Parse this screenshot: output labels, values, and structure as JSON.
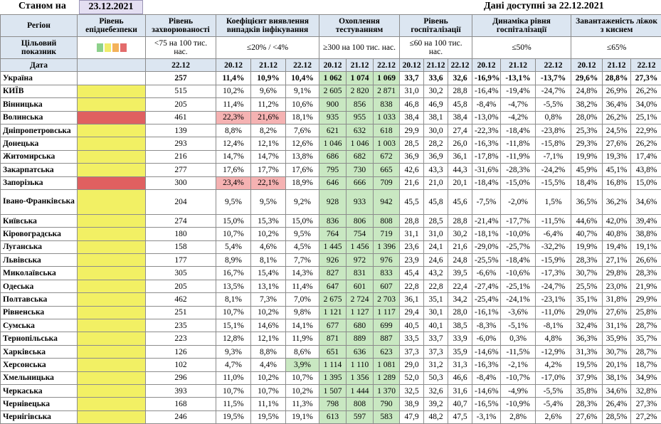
{
  "header": {
    "asof_label": "Станом на",
    "asof_date": "23.12.2021",
    "data_available": "Дані доступні за  22.12.2021"
  },
  "columns": {
    "region": "Регіон",
    "level": "Рівень епіднебезпеки",
    "incidence": "Рівень захворюваності",
    "detection": "Коефіцієнт виявлення випадків інфікування",
    "testing": "Охоплення тестуванням",
    "hosp": "Рівень госпіталізації",
    "dyn": "Динаміка рівня госпіталізації",
    "oxy": "Завантаженість ліжок з киснем"
  },
  "target": {
    "label": "Цільовий показник",
    "incidence": "<75 на 100 тис. нас.",
    "detection": "≤20% / <4%",
    "testing": "≥300 на 100 тис. нас.",
    "hosp": "≤60 на 100 тис. нас.",
    "dyn": "≤50%",
    "oxy": "≤65%"
  },
  "dates": {
    "label": "Дата",
    "incidence": "22.12",
    "triple": [
      "20.12",
      "21.12",
      "22.12"
    ]
  },
  "level_colors": {
    "green": "#8dd18b",
    "yellow": "#f0ec6a",
    "orange": "#f3b25a",
    "red": "#e36c6c"
  },
  "total": {
    "name": "Україна",
    "vals": [
      "257",
      "11,4%",
      "10,9%",
      "10,4%",
      "1 062",
      "1 074",
      "1 069",
      "33,7",
      "33,6",
      "32,6",
      "-16,9%",
      "-13,1%",
      "-13,7%",
      "29,6%",
      "28,8%",
      "27,3%"
    ]
  },
  "rows": [
    {
      "name": "КИЇВ",
      "level": "yellow",
      "vals": [
        "515",
        "10,2%",
        "9,6%",
        "9,1%",
        "2 605",
        "2 820",
        "2 871",
        "31,0",
        "30,2",
        "28,8",
        "-16,4%",
        "-19,4%",
        "-24,7%",
        "24,8%",
        "26,9%",
        "26,2%"
      ]
    },
    {
      "name": "Вінницька",
      "level": "yellow",
      "vals": [
        "205",
        "11,4%",
        "11,2%",
        "10,6%",
        "900",
        "856",
        "838",
        "46,8",
        "46,9",
        "45,8",
        "-8,4%",
        "-4,7%",
        "-5,5%",
        "38,2%",
        "36,4%",
        "34,0%"
      ]
    },
    {
      "name": "Волинська",
      "level": "red",
      "vals": [
        "461",
        "22,3%",
        "21,6%",
        "18,1%",
        "935",
        "955",
        "1 033",
        "38,4",
        "38,1",
        "38,4",
        "-13,0%",
        "-4,2%",
        "0,8%",
        "28,0%",
        "26,2%",
        "25,1%"
      ],
      "hlred": [
        1,
        2
      ]
    },
    {
      "name": "Дніпропетровська",
      "level": "yellow",
      "vals": [
        "139",
        "8,8%",
        "8,2%",
        "7,6%",
        "621",
        "632",
        "618",
        "29,9",
        "30,0",
        "27,4",
        "-22,3%",
        "-18,4%",
        "-23,8%",
        "25,3%",
        "24,5%",
        "22,9%"
      ]
    },
    {
      "name": "Донецька",
      "level": "yellow",
      "vals": [
        "293",
        "12,4%",
        "12,1%",
        "12,6%",
        "1 046",
        "1 046",
        "1 003",
        "28,5",
        "28,2",
        "26,0",
        "-16,3%",
        "-11,8%",
        "-15,8%",
        "29,3%",
        "27,6%",
        "26,2%"
      ]
    },
    {
      "name": "Житомирська",
      "level": "yellow",
      "vals": [
        "216",
        "14,7%",
        "14,7%",
        "13,8%",
        "686",
        "682",
        "672",
        "36,9",
        "36,9",
        "36,1",
        "-17,8%",
        "-11,9%",
        "-7,1%",
        "19,9%",
        "19,3%",
        "17,4%"
      ]
    },
    {
      "name": "Закарпатська",
      "level": "yellow",
      "vals": [
        "277",
        "17,6%",
        "17,7%",
        "17,6%",
        "795",
        "730",
        "665",
        "42,6",
        "43,3",
        "44,3",
        "-31,6%",
        "-28,3%",
        "-24,2%",
        "45,9%",
        "45,1%",
        "43,8%"
      ]
    },
    {
      "name": "Запорізька",
      "level": "red",
      "vals": [
        "300",
        "23,4%",
        "22,1%",
        "18,9%",
        "646",
        "666",
        "709",
        "21,6",
        "21,0",
        "20,1",
        "-18,4%",
        "-15,0%",
        "-15,5%",
        "18,4%",
        "16,8%",
        "15,0%"
      ],
      "hlred": [
        1,
        2
      ]
    },
    {
      "name": "Івано-Франківська",
      "level": "yellow",
      "tall": true,
      "vals": [
        "204",
        "9,5%",
        "9,5%",
        "9,2%",
        "928",
        "933",
        "942",
        "45,5",
        "45,8",
        "45,6",
        "-7,5%",
        "-2,0%",
        "1,5%",
        "36,5%",
        "36,2%",
        "34,6%"
      ]
    },
    {
      "name": "Київська",
      "level": "yellow",
      "vals": [
        "274",
        "15,0%",
        "15,3%",
        "15,0%",
        "836",
        "806",
        "808",
        "28,8",
        "28,5",
        "28,8",
        "-21,4%",
        "-17,7%",
        "-11,5%",
        "44,6%",
        "42,0%",
        "39,4%"
      ]
    },
    {
      "name": "Кіровоградська",
      "level": "yellow",
      "vals": [
        "180",
        "10,7%",
        "10,2%",
        "9,5%",
        "764",
        "754",
        "719",
        "31,1",
        "31,0",
        "30,2",
        "-18,1%",
        "-10,0%",
        "-6,4%",
        "40,7%",
        "40,8%",
        "38,8%"
      ]
    },
    {
      "name": "Луганська",
      "level": "yellow",
      "vals": [
        "158",
        "5,4%",
        "4,6%",
        "4,5%",
        "1 445",
        "1 456",
        "1 396",
        "23,6",
        "24,1",
        "21,6",
        "-29,0%",
        "-25,7%",
        "-32,2%",
        "19,9%",
        "19,4%",
        "19,1%"
      ]
    },
    {
      "name": "Львівська",
      "level": "yellow",
      "vals": [
        "177",
        "8,9%",
        "8,1%",
        "7,7%",
        "926",
        "972",
        "976",
        "23,9",
        "24,6",
        "24,8",
        "-25,5%",
        "-18,4%",
        "-15,9%",
        "28,3%",
        "27,1%",
        "26,6%"
      ]
    },
    {
      "name": "Миколаївська",
      "level": "yellow",
      "vals": [
        "305",
        "16,7%",
        "15,4%",
        "14,3%",
        "827",
        "831",
        "833",
        "45,4",
        "43,2",
        "39,5",
        "-6,6%",
        "-10,6%",
        "-17,3%",
        "30,7%",
        "29,8%",
        "28,3%"
      ]
    },
    {
      "name": "Одеська",
      "level": "yellow",
      "vals": [
        "205",
        "13,5%",
        "13,1%",
        "11,4%",
        "647",
        "601",
        "607",
        "22,8",
        "22,8",
        "22,4",
        "-27,4%",
        "-25,1%",
        "-24,7%",
        "25,5%",
        "23,0%",
        "21,9%"
      ]
    },
    {
      "name": "Полтавська",
      "level": "yellow",
      "vals": [
        "462",
        "8,1%",
        "7,3%",
        "7,0%",
        "2 675",
        "2 724",
        "2 703",
        "36,1",
        "35,1",
        "34,2",
        "-25,4%",
        "-24,1%",
        "-23,1%",
        "35,1%",
        "31,8%",
        "29,9%"
      ]
    },
    {
      "name": "Рівненська",
      "level": "yellow",
      "vals": [
        "251",
        "10,7%",
        "10,2%",
        "9,8%",
        "1 121",
        "1 127",
        "1 117",
        "29,4",
        "30,1",
        "28,0",
        "-16,1%",
        "-3,6%",
        "-11,0%",
        "29,0%",
        "27,6%",
        "25,8%"
      ]
    },
    {
      "name": "Сумська",
      "level": "yellow",
      "vals": [
        "235",
        "15,1%",
        "14,6%",
        "14,1%",
        "677",
        "680",
        "699",
        "40,5",
        "40,1",
        "38,5",
        "-8,3%",
        "-5,1%",
        "-8,1%",
        "32,4%",
        "31,1%",
        "28,7%"
      ]
    },
    {
      "name": "Тернопільська",
      "level": "yellow",
      "vals": [
        "223",
        "12,8%",
        "12,1%",
        "11,9%",
        "871",
        "889",
        "887",
        "33,5",
        "33,7",
        "33,9",
        "-6,0%",
        "0,3%",
        "4,8%",
        "36,3%",
        "35,9%",
        "35,7%"
      ]
    },
    {
      "name": "Харківська",
      "level": "yellow",
      "vals": [
        "126",
        "9,3%",
        "8,8%",
        "8,6%",
        "651",
        "636",
        "623",
        "37,3",
        "37,3",
        "35,9",
        "-14,6%",
        "-11,5%",
        "-12,9%",
        "31,3%",
        "30,7%",
        "28,7%"
      ]
    },
    {
      "name": "Херсонська",
      "level": "yellow",
      "vals": [
        "102",
        "4,7%",
        "4,4%",
        "3,9%",
        "1 114",
        "1 110",
        "1 081",
        "29,0",
        "31,2",
        "31,3",
        "-16,3%",
        "-2,1%",
        "4,2%",
        "19,5%",
        "20,1%",
        "18,7%"
      ],
      "hlgreen": [
        3
      ]
    },
    {
      "name": "Хмельницька",
      "level": "yellow",
      "vals": [
        "296",
        "11,0%",
        "10,2%",
        "10,7%",
        "1 395",
        "1 356",
        "1 289",
        "52,0",
        "50,3",
        "46,6",
        "-8,4%",
        "-10,7%",
        "-17,0%",
        "37,9%",
        "38,1%",
        "34,9%"
      ]
    },
    {
      "name": "Черкаська",
      "level": "yellow",
      "vals": [
        "393",
        "10,7%",
        "10,7%",
        "10,2%",
        "1 507",
        "1 444",
        "1 370",
        "32,5",
        "32,6",
        "31,6",
        "-14,6%",
        "-4,9%",
        "-5,5%",
        "35,8%",
        "34,6%",
        "32,8%"
      ]
    },
    {
      "name": "Чернівецька",
      "level": "yellow",
      "vals": [
        "168",
        "11,5%",
        "11,1%",
        "11,3%",
        "798",
        "808",
        "790",
        "38,9",
        "39,2",
        "40,7",
        "-16,5%",
        "-10,9%",
        "-5,4%",
        "28,3%",
        "26,4%",
        "27,3%"
      ]
    },
    {
      "name": "Чернігівська",
      "level": "yellow",
      "vals": [
        "246",
        "19,5%",
        "19,5%",
        "19,1%",
        "613",
        "597",
        "583",
        "47,9",
        "48,2",
        "47,5",
        "-3,1%",
        "2,8%",
        "2,6%",
        "27,6%",
        "28,5%",
        "27,2%"
      ]
    }
  ]
}
